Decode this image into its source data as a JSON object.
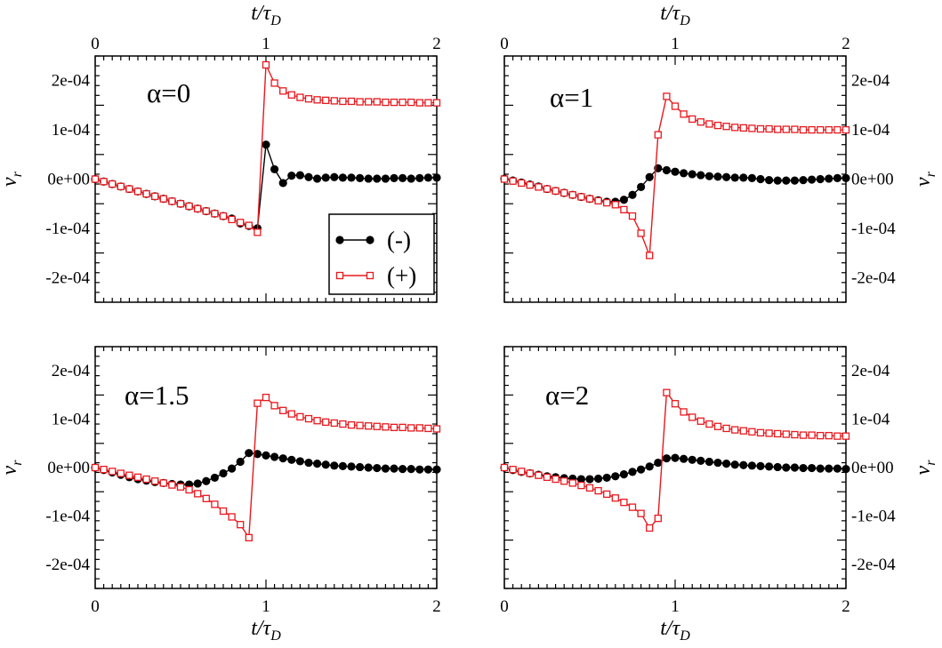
{
  "chart_data": [
    {
      "type": "line",
      "panel": "top-left",
      "annotation": "α=0",
      "xlabel": "t/τ_D",
      "x_axis_title": {
        "main": "t/τ",
        "sub": "D"
      },
      "ylabel": "v_r",
      "y_axis_title": {
        "main": "v",
        "sub": "r"
      },
      "xlim": [
        0,
        2
      ],
      "ylim": [
        -0.00025,
        0.00025
      ],
      "x_ticks": [
        0,
        1,
        2
      ],
      "x_tick_labels": [
        "0",
        "1",
        "2"
      ],
      "y_ticks": [
        -0.0002,
        -0.0001,
        0,
        0.0001,
        0.0002
      ],
      "y_tick_labels": [
        "-2e-04",
        "-1e-04",
        "0e+00",
        "1e-04",
        "2e-04"
      ],
      "y_tick_side": "left",
      "x_tick_side": "top",
      "legend": {
        "position": "bottom-right",
        "entries": [
          "(-)",
          "(+)"
        ]
      },
      "series": [
        {
          "name": "(-)",
          "color": "#000000",
          "marker": "filled-circle",
          "x": [
            0,
            0.05,
            0.1,
            0.15,
            0.2,
            0.25,
            0.3,
            0.35,
            0.4,
            0.45,
            0.5,
            0.55,
            0.6,
            0.65,
            0.7,
            0.75,
            0.8,
            0.85,
            0.9,
            0.95,
            1.0,
            1.05,
            1.1,
            1.15,
            1.2,
            1.25,
            1.3,
            1.35,
            1.4,
            1.45,
            1.5,
            1.55,
            1.6,
            1.65,
            1.7,
            1.75,
            1.8,
            1.85,
            1.9,
            1.95,
            2.0
          ],
          "y": [
            0,
            -5e-06,
            -1e-05,
            -1.5e-05,
            -2e-05,
            -2.5e-05,
            -3e-05,
            -3.5e-05,
            -4e-05,
            -4.5e-05,
            -5e-05,
            -5.5e-05,
            -6e-05,
            -6.5e-05,
            -7e-05,
            -7.5e-05,
            -8e-05,
            -9e-05,
            -9.5e-05,
            -0.0001,
            7e-05,
            2e-05,
            -8e-06,
            7e-06,
            8e-06,
            4e-06,
            1e-06,
            3e-06,
            4e-06,
            3e-06,
            3e-06,
            2e-06,
            1e-06,
            1e-06,
            1e-06,
            2e-06,
            2e-06,
            1e-06,
            2e-06,
            3e-06,
            3e-06
          ]
        },
        {
          "name": "(+)",
          "color": "#e8191e",
          "marker": "open-square",
          "x": [
            0,
            0.05,
            0.1,
            0.15,
            0.2,
            0.25,
            0.3,
            0.35,
            0.4,
            0.45,
            0.5,
            0.55,
            0.6,
            0.65,
            0.7,
            0.75,
            0.8,
            0.85,
            0.9,
            0.95,
            1.0,
            1.05,
            1.1,
            1.15,
            1.2,
            1.25,
            1.3,
            1.35,
            1.4,
            1.45,
            1.5,
            1.55,
            1.6,
            1.65,
            1.7,
            1.75,
            1.8,
            1.85,
            1.9,
            1.95,
            2.0
          ],
          "y": [
            0,
            -5e-06,
            -1e-05,
            -1.5e-05,
            -2e-05,
            -2.5e-05,
            -3e-05,
            -3.5e-05,
            -4e-05,
            -4.5e-05,
            -5e-05,
            -5.5e-05,
            -6e-05,
            -6.5e-05,
            -7e-05,
            -7.5e-05,
            -8.2e-05,
            -8.8e-05,
            -9.4e-05,
            -0.000108,
            0.000232,
            0.000195,
            0.000179,
            0.000171,
            0.000166,
            0.000163,
            0.000161,
            0.00016,
            0.000159,
            0.000158,
            0.000158,
            0.000157,
            0.000157,
            0.000157,
            0.000156,
            0.000156,
            0.000156,
            0.000156,
            0.000155,
            0.000155,
            0.000155
          ]
        }
      ]
    },
    {
      "type": "line",
      "panel": "top-right",
      "annotation": "α=1",
      "xlabel": "t/τ_D",
      "x_axis_title": {
        "main": "t/τ",
        "sub": "D"
      },
      "ylabel": "v_r",
      "y_axis_title": {
        "main": "v",
        "sub": "r"
      },
      "xlim": [
        0,
        2
      ],
      "ylim": [
        -0.00025,
        0.00025
      ],
      "x_ticks": [
        0,
        1,
        2
      ],
      "x_tick_labels": [
        "0",
        "1",
        "2"
      ],
      "y_ticks": [
        -0.0002,
        -0.0001,
        0,
        0.0001,
        0.0002
      ],
      "y_tick_labels": [
        "-2e-04",
        "-1e-04",
        "0e+00",
        "1e-04",
        "2e-04"
      ],
      "y_tick_side": "right",
      "x_tick_side": "top",
      "series": [
        {
          "name": "(-)",
          "color": "#000000",
          "marker": "filled-circle",
          "x": [
            0,
            0.05,
            0.1,
            0.15,
            0.2,
            0.25,
            0.3,
            0.35,
            0.4,
            0.45,
            0.5,
            0.55,
            0.6,
            0.65,
            0.7,
            0.75,
            0.8,
            0.85,
            0.9,
            0.95,
            1.0,
            1.05,
            1.1,
            1.15,
            1.2,
            1.25,
            1.3,
            1.35,
            1.4,
            1.45,
            1.5,
            1.55,
            1.6,
            1.65,
            1.7,
            1.75,
            1.8,
            1.85,
            1.9,
            1.95,
            2.0
          ],
          "y": [
            1e-06,
            -3e-06,
            -7e-06,
            -1.1e-05,
            -1.5e-05,
            -2e-05,
            -2.4e-05,
            -2.8e-05,
            -3.2e-05,
            -3.6e-05,
            -4e-05,
            -4.3e-05,
            -4.6e-05,
            -4.6e-05,
            -4.2e-05,
            -3.2e-05,
            -1.6e-05,
            4e-06,
            2.2e-05,
            1.8e-05,
            1.5e-05,
            1.2e-05,
            1e-05,
            8e-06,
            6e-06,
            5e-06,
            4e-06,
            3e-06,
            3e-06,
            2e-06,
            0,
            -2e-06,
            -3e-06,
            -3e-06,
            -3e-06,
            -2e-06,
            -1e-06,
            0,
            1e-06,
            2e-06,
            2e-06
          ]
        },
        {
          "name": "(+)",
          "color": "#e8191e",
          "marker": "open-square",
          "x": [
            0,
            0.05,
            0.1,
            0.15,
            0.2,
            0.25,
            0.3,
            0.35,
            0.4,
            0.45,
            0.5,
            0.55,
            0.6,
            0.65,
            0.7,
            0.75,
            0.8,
            0.85,
            0.9,
            0.95,
            1.0,
            1.05,
            1.1,
            1.15,
            1.2,
            1.25,
            1.3,
            1.35,
            1.4,
            1.45,
            1.5,
            1.55,
            1.6,
            1.65,
            1.7,
            1.75,
            1.8,
            1.85,
            1.9,
            1.95,
            2.0
          ],
          "y": [
            0,
            -4e-06,
            -8e-06,
            -1.2e-05,
            -1.6e-05,
            -2e-05,
            -2.4e-05,
            -2.8e-05,
            -3.2e-05,
            -3.6e-05,
            -4e-05,
            -4.4e-05,
            -4.8e-05,
            -5.2e-05,
            -6.2e-05,
            -7.5e-05,
            -0.00011,
            -0.000155,
            9e-05,
            0.000168,
            0.000148,
            0.000132,
            0.000122,
            0.000116,
            0.000112,
            0.000109,
            0.000107,
            0.000105,
            0.000104,
            0.000103,
            0.000102,
            0.000102,
            0.000101,
            0.000101,
            0.000101,
            0.0001,
            0.0001,
            0.0001,
            0.0001,
            0.0001,
            0.0001
          ]
        }
      ]
    },
    {
      "type": "line",
      "panel": "bottom-left",
      "annotation": "α=1.5",
      "xlabel": "t/τ_D",
      "x_axis_title": {
        "main": "t/τ",
        "sub": "D"
      },
      "ylabel": "v_r",
      "y_axis_title": {
        "main": "v",
        "sub": "r"
      },
      "xlim": [
        0,
        2
      ],
      "ylim": [
        -0.00025,
        0.00025
      ],
      "x_ticks": [
        0,
        1,
        2
      ],
      "x_tick_labels": [
        "0",
        "1",
        "2"
      ],
      "y_ticks": [
        -0.0002,
        -0.0001,
        0,
        0.0001,
        0.0002
      ],
      "y_tick_labels": [
        "-2e-04",
        "-1e-04",
        "0e+00",
        "1e-04",
        "2e-04"
      ],
      "y_tick_side": "left",
      "x_tick_side": "bottom",
      "series": [
        {
          "name": "(-)",
          "color": "#000000",
          "marker": "filled-circle",
          "x": [
            0,
            0.05,
            0.1,
            0.15,
            0.2,
            0.25,
            0.3,
            0.35,
            0.4,
            0.45,
            0.5,
            0.55,
            0.6,
            0.65,
            0.7,
            0.75,
            0.8,
            0.85,
            0.9,
            0.95,
            1.0,
            1.05,
            1.1,
            1.15,
            1.2,
            1.25,
            1.3,
            1.35,
            1.4,
            1.45,
            1.5,
            1.55,
            1.6,
            1.65,
            1.7,
            1.75,
            1.8,
            1.85,
            1.9,
            1.95,
            2.0
          ],
          "y": [
            0,
            -5e-06,
            -1e-05,
            -1.5e-05,
            -2e-05,
            -2.4e-05,
            -2.7e-05,
            -3e-05,
            -3.2e-05,
            -3.4e-05,
            -3.5e-05,
            -3.5e-05,
            -3.3e-05,
            -2.8e-05,
            -2.1e-05,
            -1.2e-05,
            -2e-06,
            1.2e-05,
            3e-05,
            2.8e-05,
            2.5e-05,
            2.2e-05,
            1.9e-05,
            1.6e-05,
            1.3e-05,
            1e-05,
            8e-06,
            6e-06,
            4e-06,
            3e-06,
            2e-06,
            1e-06,
            0,
            -1e-06,
            -2e-06,
            -2e-06,
            -3e-06,
            -3e-06,
            -4e-06,
            -4e-06,
            -4e-06
          ]
        },
        {
          "name": "(+)",
          "color": "#e8191e",
          "marker": "open-square",
          "x": [
            0,
            0.05,
            0.1,
            0.15,
            0.2,
            0.25,
            0.3,
            0.35,
            0.4,
            0.45,
            0.5,
            0.55,
            0.6,
            0.65,
            0.7,
            0.75,
            0.8,
            0.85,
            0.9,
            0.95,
            1.0,
            1.05,
            1.1,
            1.15,
            1.2,
            1.25,
            1.3,
            1.35,
            1.4,
            1.45,
            1.5,
            1.55,
            1.6,
            1.65,
            1.7,
            1.75,
            1.8,
            1.85,
            1.9,
            1.95,
            2.0
          ],
          "y": [
            0,
            -4e-06,
            -8e-06,
            -1.2e-05,
            -1.6e-05,
            -2e-05,
            -2.4e-05,
            -2.8e-05,
            -3.2e-05,
            -3.6e-05,
            -4e-05,
            -4.6e-05,
            -5.4e-05,
            -6.4e-05,
            -7.6e-05,
            -9e-05,
            -0.000102,
            -0.000118,
            -0.000145,
            0.000133,
            0.000145,
            0.000128,
            0.000118,
            0.000111,
            0.000105,
            0.000101,
            9.7e-05,
            9.4e-05,
            9.2e-05,
            9e-05,
            8.8e-05,
            8.7e-05,
            8.6e-05,
            8.5e-05,
            8.4e-05,
            8.3e-05,
            8.3e-05,
            8.2e-05,
            8.2e-05,
            8.1e-05,
            8e-05
          ]
        }
      ]
    },
    {
      "type": "line",
      "panel": "bottom-right",
      "annotation": "α=2",
      "xlabel": "t/τ_D",
      "x_axis_title": {
        "main": "t/τ",
        "sub": "D"
      },
      "ylabel": "v_r",
      "y_axis_title": {
        "main": "v",
        "sub": "r"
      },
      "xlim": [
        0,
        2
      ],
      "ylim": [
        -0.00025,
        0.00025
      ],
      "x_ticks": [
        0,
        1,
        2
      ],
      "x_tick_labels": [
        "0",
        "1",
        "2"
      ],
      "y_ticks": [
        -0.0002,
        -0.0001,
        0,
        0.0001,
        0.0002
      ],
      "y_tick_labels": [
        "-2e-04",
        "-1e-04",
        "0e+00",
        "1e-04",
        "2e-04"
      ],
      "y_tick_side": "right",
      "x_tick_side": "bottom",
      "series": [
        {
          "name": "(-)",
          "color": "#000000",
          "marker": "filled-circle",
          "x": [
            0,
            0.05,
            0.1,
            0.15,
            0.2,
            0.25,
            0.3,
            0.35,
            0.4,
            0.45,
            0.5,
            0.55,
            0.6,
            0.65,
            0.7,
            0.75,
            0.8,
            0.85,
            0.9,
            0.95,
            1.0,
            1.05,
            1.1,
            1.15,
            1.2,
            1.25,
            1.3,
            1.35,
            1.4,
            1.45,
            1.5,
            1.55,
            1.6,
            1.65,
            1.7,
            1.75,
            1.8,
            1.85,
            1.9,
            1.95,
            2.0
          ],
          "y": [
            0,
            -5e-06,
            -9e-06,
            -1.2e-05,
            -1.5e-05,
            -1.8e-05,
            -2e-05,
            -2.2e-05,
            -2.3e-05,
            -2.4e-05,
            -2.4e-05,
            -2.3e-05,
            -2.1e-05,
            -1.8e-05,
            -1.4e-05,
            -9e-06,
            -4e-06,
            2e-06,
            1e-05,
            1.9e-05,
            2e-05,
            1.8e-05,
            1.6e-05,
            1.4e-05,
            1.2e-05,
            1e-05,
            8e-06,
            6e-06,
            5e-06,
            4e-06,
            3e-06,
            2e-06,
            1e-06,
            0,
            0,
            -1e-06,
            -1e-06,
            -2e-06,
            -2e-06,
            -2e-06,
            -3e-06
          ]
        },
        {
          "name": "(+)",
          "color": "#e8191e",
          "marker": "open-square",
          "x": [
            0,
            0.05,
            0.1,
            0.15,
            0.2,
            0.25,
            0.3,
            0.35,
            0.4,
            0.45,
            0.5,
            0.55,
            0.6,
            0.65,
            0.7,
            0.75,
            0.8,
            0.85,
            0.9,
            0.95,
            1.0,
            1.05,
            1.1,
            1.15,
            1.2,
            1.25,
            1.3,
            1.35,
            1.4,
            1.45,
            1.5,
            1.55,
            1.6,
            1.65,
            1.7,
            1.75,
            1.8,
            1.85,
            1.9,
            1.95,
            2.0
          ],
          "y": [
            0,
            -4e-06,
            -8e-06,
            -1.2e-05,
            -1.6e-05,
            -2e-05,
            -2.4e-05,
            -2.8e-05,
            -3.2e-05,
            -3.7e-05,
            -4.2e-05,
            -4.8e-05,
            -5.5e-05,
            -6.3e-05,
            -7.2e-05,
            -8.2e-05,
            -9.5e-05,
            -0.000125,
            -0.000105,
            0.000155,
            0.000132,
            0.000115,
            0.000104,
            9.6e-05,
            9e-05,
            8.5e-05,
            8.1e-05,
            7.8e-05,
            7.6e-05,
            7.4e-05,
            7.2e-05,
            7.1e-05,
            7e-05,
            6.9e-05,
            6.8e-05,
            6.7e-05,
            6.7e-05,
            6.6e-05,
            6.6e-05,
            6.5e-05,
            6.5e-05
          ]
        }
      ]
    }
  ]
}
